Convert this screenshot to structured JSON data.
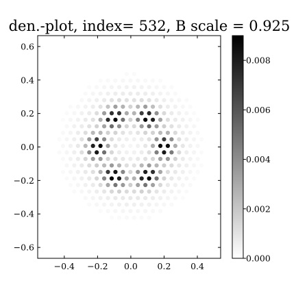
{
  "chart_data": {
    "type": "scatter",
    "title": "den.-plot, index= 532, B scale = 0.925",
    "xlabel": "",
    "ylabel": "",
    "xlim": [
      -0.56,
      0.54
    ],
    "ylim": [
      -0.665,
      0.665
    ],
    "x_ticks": [
      -0.4,
      -0.2,
      0.0,
      0.2,
      0.4
    ],
    "x_tick_labels": [
      "−0.4",
      "−0.2",
      "0.0",
      "0.2",
      "0.4"
    ],
    "y_ticks": [
      -0.6,
      -0.4,
      -0.2,
      0.0,
      0.2,
      0.4,
      0.6
    ],
    "y_tick_labels": [
      "−0.6",
      "−0.4",
      "−0.2",
      "0.0",
      "0.2",
      "0.4",
      "0.6"
    ],
    "grid": false,
    "colormap": "gray_r",
    "colorbar": {
      "min": 0.0,
      "max": 0.009,
      "ticks": [
        0.0,
        0.002,
        0.004,
        0.006,
        0.008
      ],
      "tick_labels": [
        "0.000",
        "0.002",
        "0.004",
        "0.006",
        "0.008"
      ],
      "color_low": "#ffffff",
      "color_high": "#000000"
    },
    "lattice": {
      "spacing": 0.045,
      "x_range": [
        -0.52,
        0.5
      ],
      "y_range": [
        -0.5,
        0.5
      ],
      "ring_radius": 0.2,
      "ring_width": 0.055,
      "halo_width": 0.17,
      "peak_value": 0.0088,
      "halo_value": 0.0011,
      "symmetry": 6
    }
  }
}
